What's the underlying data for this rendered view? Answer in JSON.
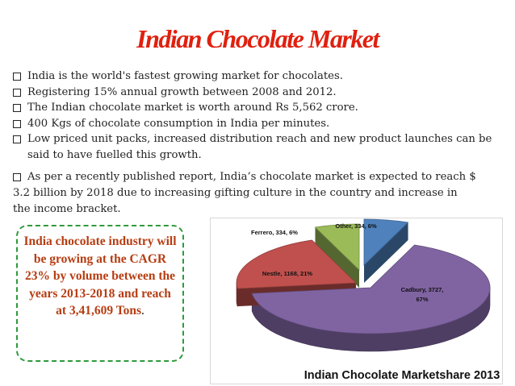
{
  "title": "Indian Chocolate Market",
  "bullets": [
    "India is the world's fastest growing market for chocolates.",
    "Registering 15% annual growth between 2008 and 2012.",
    "The Indian chocolate market is worth around Rs 5,562 crore.",
    "400 Kgs of chocolate consumption in India per minutes.",
    "Low priced unit packs, increased distribution reach and new product launches can be said to have fuelled this growth."
  ],
  "paragraph": "As per a recently published report, India’s chocolate market is expected to  reach $ 3.2 billion by 2018 due to increasing gifting culture in the country and  increase in the income bracket.",
  "callout": {
    "text": "India chocolate industry will be growing at the CAGR 23% by volume between the years 2013-2018 and reach at 3,41,609 Tons",
    "tail": "."
  },
  "chart_data": {
    "type": "pie",
    "title": "Indian Chocolate Marketshare 2013",
    "series": [
      {
        "name": "Cadbury",
        "value": 3727,
        "percent": 67,
        "label": "Cadbury, 3727,",
        "label2": "67%",
        "color": "#8064a2"
      },
      {
        "name": "Nestle",
        "value": 1168,
        "percent": 21,
        "label": "Nestle, 1168, 21%",
        "color": "#c0504d"
      },
      {
        "name": "Ferrero",
        "value": 334,
        "percent": 6,
        "label": "Ferrero, 334, 6%",
        "color": "#9bbb59"
      },
      {
        "name": "Other",
        "value": 334,
        "percent": 6,
        "label": "Other, 334, 6%",
        "color": "#4f81bd"
      }
    ]
  }
}
